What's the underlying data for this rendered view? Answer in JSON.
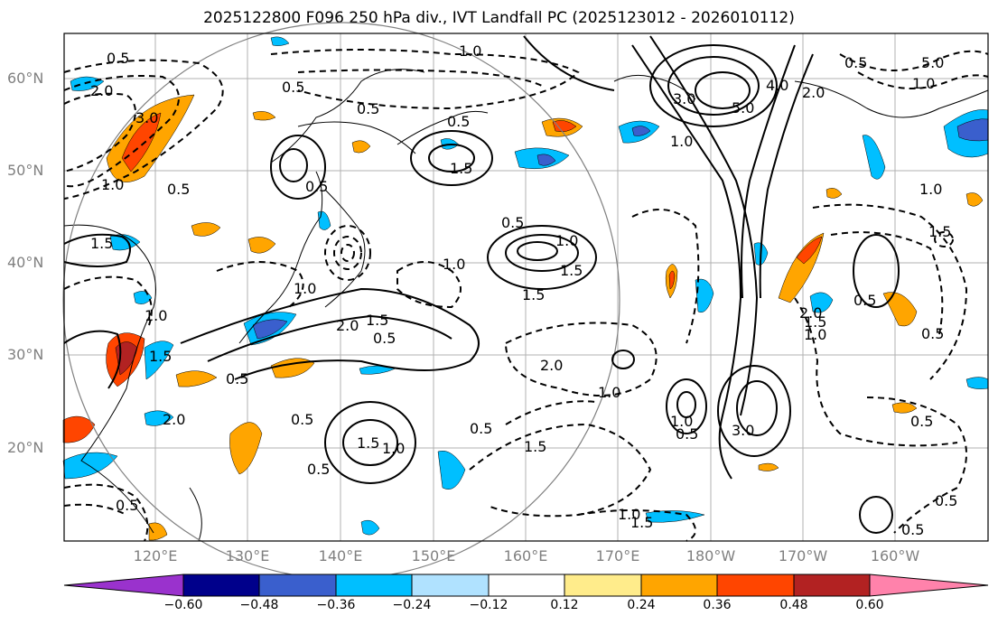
{
  "title": "2025122800 F096 250 hPa div., IVT Landfall PC (2025123012 - 2026010112)",
  "lat_labels": [
    "60°N",
    "50°N",
    "40°N",
    "30°N",
    "20°N"
  ],
  "lon_labels": [
    "120°E",
    "130°E",
    "140°E",
    "150°E",
    "160°E",
    "170°E",
    "180°W",
    "170°W",
    "160°W"
  ],
  "contour_labels": [
    "0.5",
    "1.0",
    "1.5",
    "2.0",
    "3.0",
    "4.0",
    "5.0"
  ],
  "colorbar": {
    "ticks": [
      "−0.60",
      "−0.48",
      "−0.36",
      "−0.24",
      "−0.12",
      "0.12",
      "0.24",
      "0.36",
      "0.48",
      "0.60"
    ],
    "colors": [
      "#9a32cd",
      "#00008b",
      "#3a5fcd",
      "#00bfff",
      "#b0e2ff",
      "#ffffff",
      "#ffec8b",
      "#ffa500",
      "#ff4500",
      "#b22222",
      "#ff82ab"
    ]
  }
}
